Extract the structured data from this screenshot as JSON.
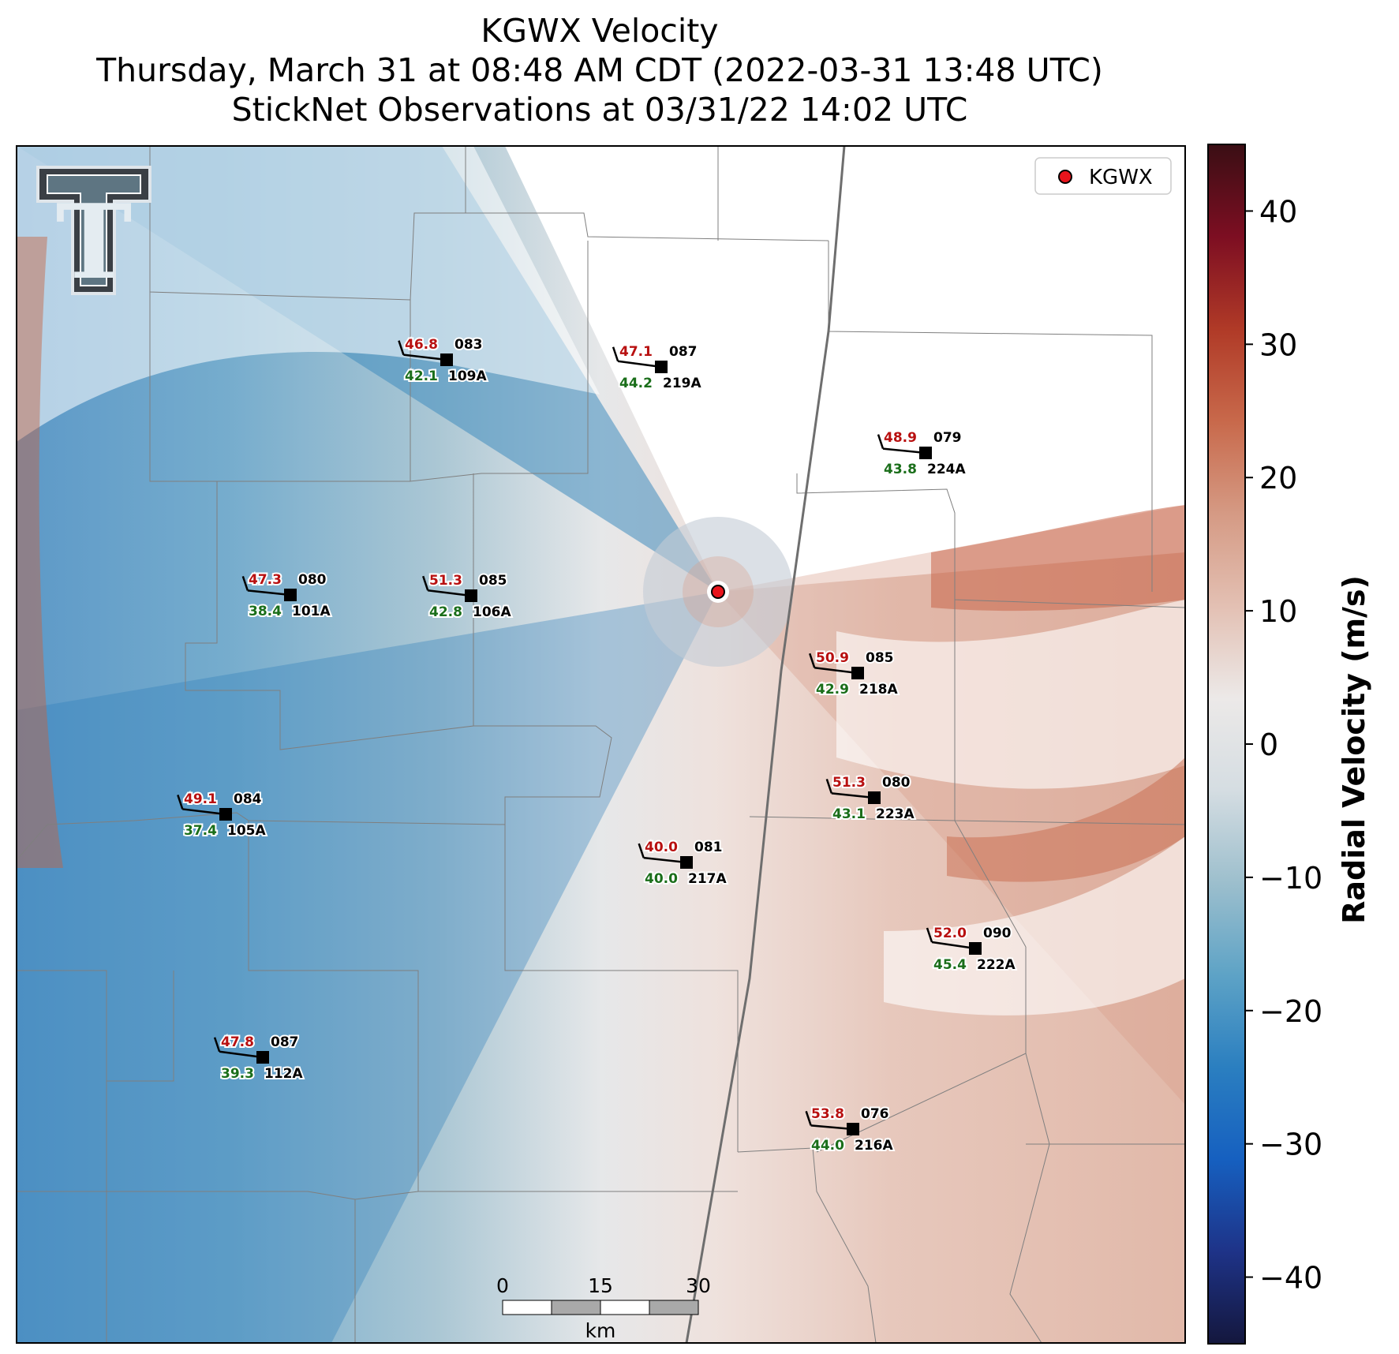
{
  "title": {
    "line1": "KGWX Velocity",
    "line2": "Thursday, March 31 at 08:48 AM CDT (2022-03-31 13:48 UTC)",
    "line3": "StickNet Observations at 03/31/22 14:02 UTC"
  },
  "logo": {
    "text": "T",
    "name": "Texas Tech double-T logo"
  },
  "legend": {
    "label": "KGWX",
    "marker_color": "#e8141c"
  },
  "radar": {
    "name": "KGWX"
  },
  "colorbar": {
    "label": "Radial Velocity (m/s)",
    "ticks": [
      "40",
      "30",
      "20",
      "10",
      "0",
      "−10",
      "−20",
      "−30",
      "−40"
    ],
    "tick_values": [
      40,
      30,
      20,
      10,
      0,
      -10,
      -20,
      -30,
      -40
    ],
    "range": [
      -45,
      45
    ],
    "colors": [
      "#14173d",
      "#1e3388",
      "#1660c0",
      "#2b7fc0",
      "#5ea3c6",
      "#9dbfcd",
      "#d5dde2",
      "#ece9e8",
      "#e3c0b3",
      "#d59a84",
      "#c8694b",
      "#b03a27",
      "#7d0e22",
      "#3a0e14"
    ]
  },
  "scalebar": {
    "ticks": [
      "0",
      "15",
      "30"
    ],
    "unit": "km"
  },
  "stations": [
    {
      "id": "109A",
      "speed": "46.8",
      "dir": "083",
      "temp": "42.1"
    },
    {
      "id": "219A",
      "speed": "47.1",
      "dir": "087",
      "temp": "44.2"
    },
    {
      "id": "224A",
      "speed": "48.9",
      "dir": "079",
      "temp": "43.8"
    },
    {
      "id": "101A",
      "speed": "47.3",
      "dir": "080",
      "temp": "38.4"
    },
    {
      "id": "106A",
      "speed": "51.3",
      "dir": "085",
      "temp": "42.8"
    },
    {
      "id": "218A",
      "speed": "50.9",
      "dir": "085",
      "temp": "42.9"
    },
    {
      "id": "223A",
      "speed": "51.3",
      "dir": "080",
      "temp": "43.1"
    },
    {
      "id": "105A",
      "speed": "49.1",
      "dir": "084",
      "temp": "37.4"
    },
    {
      "id": "217A",
      "speed": "40.0",
      "dir": "081",
      "temp": "40.0"
    },
    {
      "id": "222A",
      "speed": "52.0",
      "dir": "090",
      "temp": "45.4"
    },
    {
      "id": "112A",
      "speed": "47.8",
      "dir": "087",
      "temp": "39.3"
    },
    {
      "id": "216A",
      "speed": "53.8",
      "dir": "076",
      "temp": "44.0"
    }
  ]
}
